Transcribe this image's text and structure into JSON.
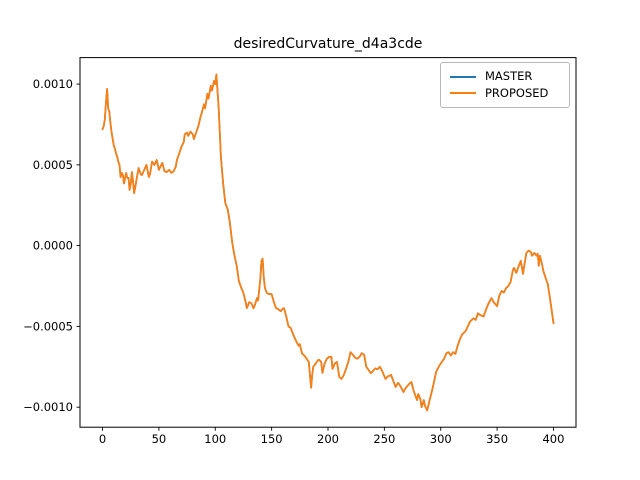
{
  "chart_data": {
    "type": "line",
    "title": "desiredCurvature_d4a3cde",
    "xlabel": "",
    "ylabel": "",
    "grid": false,
    "xlim": [
      -20,
      420
    ],
    "ylim": [
      -0.001124,
      0.001164
    ],
    "legend": {
      "position": "upper right",
      "entries": [
        "MASTER",
        "PROPOSED"
      ]
    },
    "xticks": {
      "values": [
        0,
        50,
        100,
        150,
        200,
        250,
        300,
        350,
        400
      ],
      "labels": [
        "0",
        "50",
        "100",
        "150",
        "200",
        "250",
        "300",
        "350",
        "400"
      ]
    },
    "yticks": {
      "values": [
        0.001,
        0.0005,
        0.0,
        -0.0005,
        -0.001
      ],
      "labels": [
        "0.0010",
        "0.0005",
        "0.0000",
        "−0.0005",
        "−0.0010"
      ]
    },
    "x": [
      0,
      1,
      2,
      3,
      4,
      5,
      6,
      7,
      8,
      9,
      10,
      11,
      12,
      13,
      14,
      15,
      16,
      17,
      18,
      19,
      20,
      21,
      22,
      23,
      24,
      25,
      26,
      27,
      28,
      29,
      30,
      32,
      34,
      35,
      37,
      39,
      41,
      42,
      44,
      46,
      48,
      50,
      52,
      53,
      55,
      57,
      59,
      61,
      63,
      65,
      66,
      68,
      70,
      72,
      73,
      75,
      76,
      78,
      80,
      81,
      83,
      85,
      87,
      88,
      90,
      91,
      93,
      94,
      96,
      97,
      99,
      100,
      101,
      103,
      105,
      107,
      109,
      111,
      113,
      115,
      117,
      119,
      121,
      123,
      125,
      127,
      128,
      129,
      130,
      132,
      134,
      135,
      137,
      138,
      140,
      141,
      142,
      143,
      144,
      145,
      146,
      148,
      150,
      152,
      154,
      156,
      158,
      160,
      161,
      163,
      165,
      167,
      168,
      170,
      172,
      174,
      175,
      177,
      179,
      181,
      183,
      185,
      186,
      187,
      189,
      191,
      192,
      194,
      195,
      197,
      199,
      201,
      203,
      204,
      206,
      208,
      210,
      212,
      214,
      216,
      218,
      220,
      222,
      224,
      226,
      228,
      230,
      232,
      234,
      236,
      238,
      240,
      242,
      244,
      246,
      248,
      251,
      253,
      256,
      258,
      260,
      262,
      263,
      265,
      267,
      269,
      272,
      274,
      276,
      279,
      280,
      282,
      283,
      285,
      286,
      288,
      290,
      292,
      294,
      296,
      299,
      301,
      303,
      305,
      307,
      309,
      311,
      313,
      315,
      317,
      319,
      322,
      324,
      326,
      329,
      331,
      333,
      335,
      338,
      340,
      342,
      345,
      347,
      350,
      352,
      354,
      356,
      358,
      360,
      362,
      364,
      365,
      367,
      369,
      371,
      373,
      374,
      376,
      378,
      380,
      381,
      383,
      385,
      386,
      387,
      388,
      390,
      391,
      393,
      395,
      397,
      398,
      400
    ],
    "series": [
      {
        "name": "MASTER",
        "color": "#1f77b4",
        "values": [
          0.00072,
          0.00074,
          0.00078,
          0.00088,
          0.00097,
          0.00085,
          0.00083,
          0.00076,
          0.0007,
          0.00066,
          0.00062,
          0.0006,
          0.00057,
          0.00055,
          0.00052,
          0.0005,
          0.000425,
          0.00045,
          0.00044,
          0.000385,
          0.00042,
          0.00045,
          0.00042,
          0.00042,
          0.000345,
          0.00038,
          0.000455,
          0.0004,
          0.000325,
          0.00036,
          0.000405,
          0.00048,
          0.00044,
          0.000438,
          0.00047,
          0.0005,
          0.000425,
          0.00044,
          0.00052,
          0.0005,
          0.00053,
          0.000469,
          0.0005,
          0.000512,
          0.00046,
          0.000456,
          0.000469,
          0.00045,
          0.00046,
          0.00049,
          0.00053,
          0.00057,
          0.000613,
          0.00064,
          0.00069,
          0.0007,
          0.00068,
          0.000705,
          0.00069,
          0.00066,
          0.0007,
          0.00074,
          0.0008,
          0.00082,
          0.000875,
          0.00085,
          0.00094,
          0.00091,
          0.00099,
          0.00096,
          0.00102,
          0.001,
          0.00106,
          0.00085,
          0.00055,
          0.00038,
          0.00026,
          0.000225,
          0.00014,
          2e-05,
          -6e-05,
          -0.000125,
          -0.00022,
          -0.00026,
          -0.000295,
          -0.00035,
          -0.000387,
          -0.00037,
          -0.00035,
          -0.000356,
          -0.000388,
          -0.00037,
          -0.000325,
          -0.00034,
          -0.0002,
          -9.4e-05,
          -8e-05,
          -0.00019,
          -0.00026,
          -0.00028,
          -0.000295,
          -0.0003,
          -0.0003,
          -0.00035,
          -0.000387,
          -0.000394,
          -0.000406,
          -0.00039,
          -0.000387,
          -0.00044,
          -0.0005,
          -0.00051,
          -0.00053,
          -0.000565,
          -0.000594,
          -0.00062,
          -0.00061,
          -0.000669,
          -0.00068,
          -0.0007,
          -0.00072,
          -0.00088,
          -0.0008,
          -0.00075,
          -0.00073,
          -0.00071,
          -0.000706,
          -0.00072,
          -0.000788,
          -0.00073,
          -0.0007,
          -0.000688,
          -0.000688,
          -0.000763,
          -0.00073,
          -0.00072,
          -0.000813,
          -0.000825,
          -0.0008,
          -0.000763,
          -0.00072,
          -0.00066,
          -0.000675,
          -0.000694,
          -0.0007,
          -0.000688,
          -0.000666,
          -0.000675,
          -0.00075,
          -0.00077,
          -0.00079,
          -0.000775,
          -0.00076,
          -0.000765,
          -0.00075,
          -0.000775,
          -0.000825,
          -0.00081,
          -0.0008,
          -0.00084,
          -0.000875,
          -0.00085,
          -0.000856,
          -0.00088,
          -0.000906,
          -0.00088,
          -0.000856,
          -0.000844,
          -0.0009,
          -0.000956,
          -0.000919,
          -0.00095,
          -0.001,
          -0.000956,
          -0.00099,
          -0.00102,
          -0.00096,
          -0.000906,
          -0.000844,
          -0.00078,
          -0.00074,
          -0.00072,
          -0.0007,
          -0.000666,
          -0.00066,
          -0.00068,
          -0.00066,
          -0.00067,
          -0.00062,
          -0.00058,
          -0.00055,
          -0.00053,
          -0.0005,
          -0.00047,
          -0.00045,
          -0.00046,
          -0.000419,
          -0.00043,
          -0.000438,
          -0.0004,
          -0.000363,
          -0.000325,
          -0.00035,
          -0.000375,
          -0.00031,
          -0.000281,
          -0.00029,
          -0.000263,
          -0.00025,
          -0.000225,
          -0.00015,
          -0.000138,
          -0.000169,
          -0.00013,
          -9.38e-05,
          -0.000175,
          -0.00013,
          -4.38e-05,
          -3.1e-05,
          -4e-05,
          -6.25e-05,
          -4.5e-05,
          -6.25e-05,
          -5e-05,
          -0.000125,
          -6.25e-05,
          -0.00012,
          -0.000156,
          -0.0002,
          -0.000238,
          -0.000331,
          -0.00038,
          -0.000481
        ]
      },
      {
        "name": "PROPOSED",
        "color": "#ff7f0e",
        "values": [
          0.00072,
          0.00074,
          0.00078,
          0.00088,
          0.00097,
          0.00085,
          0.00083,
          0.00076,
          0.0007,
          0.00066,
          0.00062,
          0.0006,
          0.00057,
          0.00055,
          0.00052,
          0.0005,
          0.000425,
          0.00045,
          0.00044,
          0.000385,
          0.00042,
          0.00045,
          0.00042,
          0.00042,
          0.000345,
          0.00038,
          0.000455,
          0.0004,
          0.000325,
          0.00036,
          0.000405,
          0.00048,
          0.00044,
          0.000438,
          0.00047,
          0.0005,
          0.000425,
          0.00044,
          0.00052,
          0.0005,
          0.00053,
          0.000469,
          0.0005,
          0.000512,
          0.00046,
          0.000456,
          0.000469,
          0.00045,
          0.00046,
          0.00049,
          0.00053,
          0.00057,
          0.000613,
          0.00064,
          0.00069,
          0.0007,
          0.00068,
          0.000705,
          0.00069,
          0.00066,
          0.0007,
          0.00074,
          0.0008,
          0.00082,
          0.000875,
          0.00085,
          0.00094,
          0.00091,
          0.00099,
          0.00096,
          0.00102,
          0.001,
          0.00106,
          0.00085,
          0.00055,
          0.00038,
          0.00026,
          0.000225,
          0.00014,
          2e-05,
          -6e-05,
          -0.000125,
          -0.00022,
          -0.00026,
          -0.000295,
          -0.00035,
          -0.000387,
          -0.00037,
          -0.00035,
          -0.000356,
          -0.000388,
          -0.00037,
          -0.000325,
          -0.00034,
          -0.0002,
          -9.4e-05,
          -8e-05,
          -0.00019,
          -0.00026,
          -0.00028,
          -0.000295,
          -0.0003,
          -0.0003,
          -0.00035,
          -0.000387,
          -0.000394,
          -0.000406,
          -0.00039,
          -0.000387,
          -0.00044,
          -0.0005,
          -0.00051,
          -0.00053,
          -0.000565,
          -0.000594,
          -0.00062,
          -0.00061,
          -0.000669,
          -0.00068,
          -0.0007,
          -0.00072,
          -0.00088,
          -0.0008,
          -0.00075,
          -0.00073,
          -0.00071,
          -0.000706,
          -0.00072,
          -0.000788,
          -0.00073,
          -0.0007,
          -0.000688,
          -0.000688,
          -0.000763,
          -0.00073,
          -0.00072,
          -0.000813,
          -0.000825,
          -0.0008,
          -0.000763,
          -0.00072,
          -0.00066,
          -0.000675,
          -0.000694,
          -0.0007,
          -0.000688,
          -0.000666,
          -0.000675,
          -0.00075,
          -0.00077,
          -0.00079,
          -0.000775,
          -0.00076,
          -0.000765,
          -0.00075,
          -0.000775,
          -0.000825,
          -0.00081,
          -0.0008,
          -0.00084,
          -0.000875,
          -0.00085,
          -0.000856,
          -0.00088,
          -0.000906,
          -0.00088,
          -0.000856,
          -0.000844,
          -0.0009,
          -0.000956,
          -0.000919,
          -0.00095,
          -0.001,
          -0.000956,
          -0.00099,
          -0.00102,
          -0.00096,
          -0.000906,
          -0.000844,
          -0.00078,
          -0.00074,
          -0.00072,
          -0.0007,
          -0.000666,
          -0.00066,
          -0.00068,
          -0.00066,
          -0.00067,
          -0.00062,
          -0.00058,
          -0.00055,
          -0.00053,
          -0.0005,
          -0.00047,
          -0.00045,
          -0.00046,
          -0.000419,
          -0.00043,
          -0.000438,
          -0.0004,
          -0.000363,
          -0.000325,
          -0.00035,
          -0.000375,
          -0.00031,
          -0.000281,
          -0.00029,
          -0.000263,
          -0.00025,
          -0.000225,
          -0.00015,
          -0.000138,
          -0.000169,
          -0.00013,
          -9.38e-05,
          -0.000175,
          -0.00013,
          -4.38e-05,
          -3.1e-05,
          -4e-05,
          -6.25e-05,
          -4.5e-05,
          -6.25e-05,
          -5e-05,
          -0.000125,
          -6.25e-05,
          -0.00012,
          -0.000156,
          -0.0002,
          -0.000238,
          -0.000331,
          -0.00038,
          -0.000481
        ]
      }
    ]
  }
}
